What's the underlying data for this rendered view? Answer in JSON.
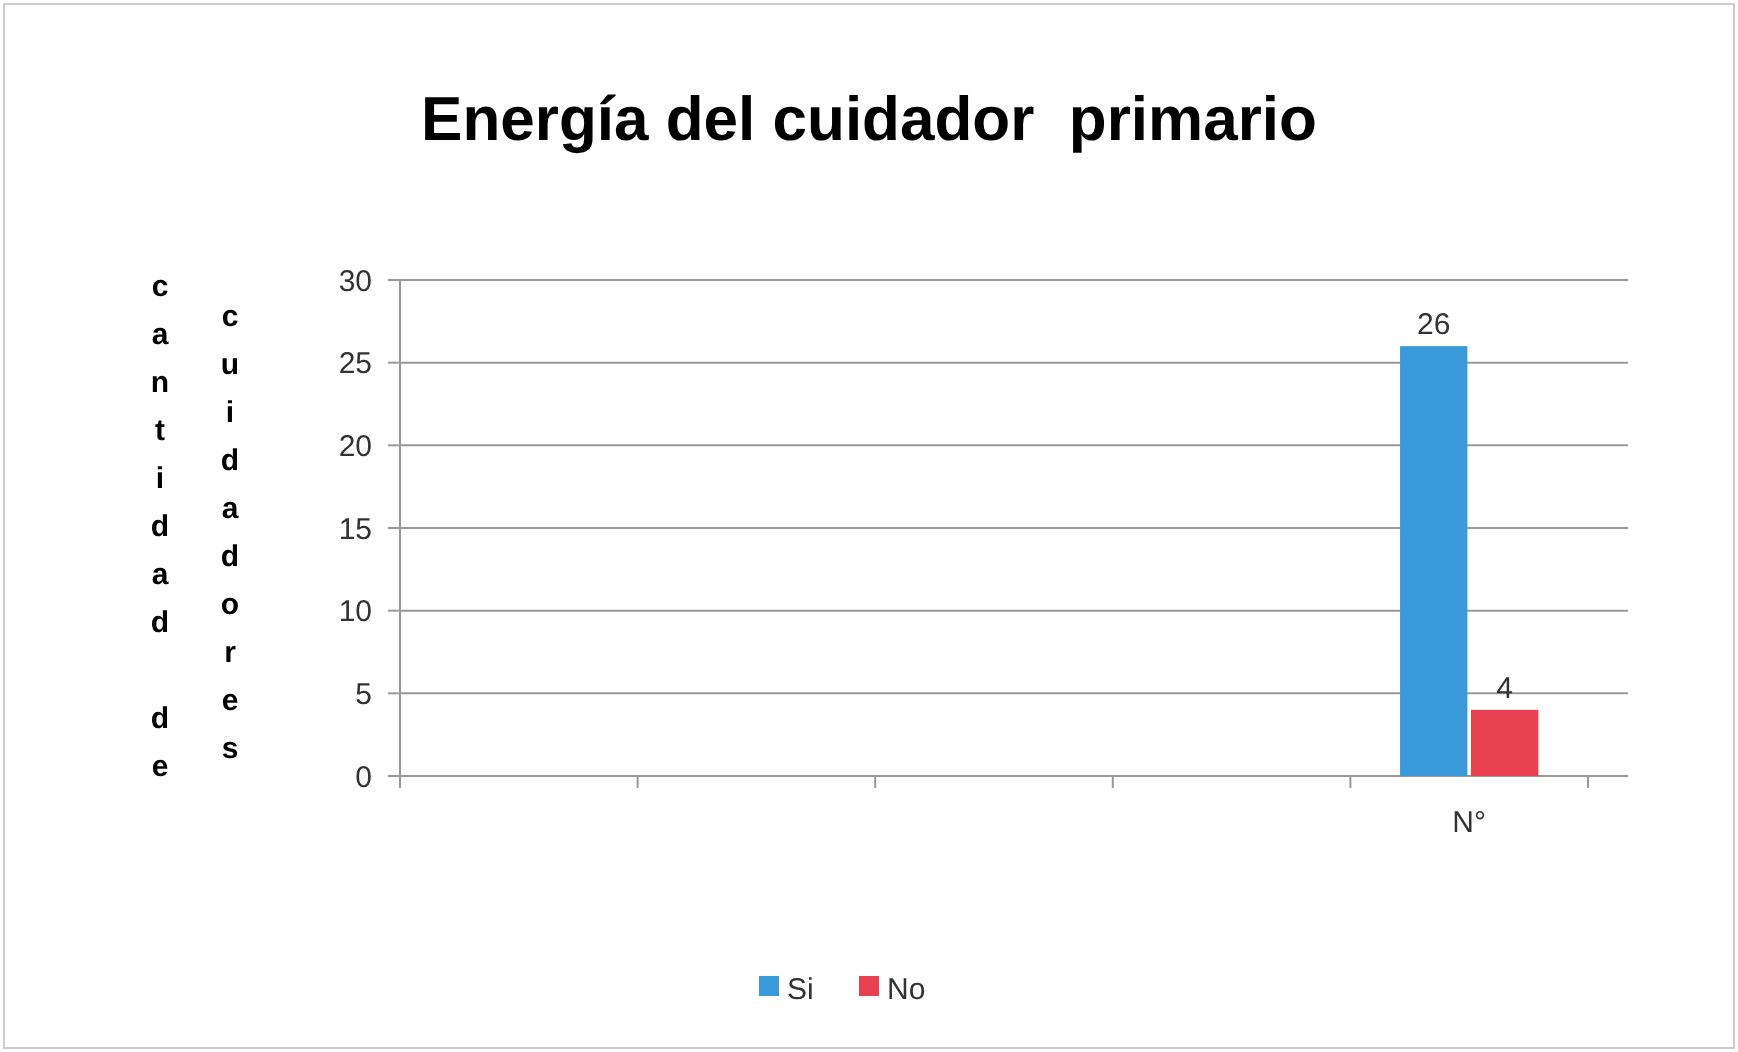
{
  "chart_data": {
    "type": "bar",
    "title": "Energía del cuidador  primario",
    "ylabel": "cantidad de cuidadores",
    "categories": [
      null,
      null,
      null,
      null,
      "N°"
    ],
    "series": [
      {
        "name": "Si",
        "color": "#3a9ad9",
        "values": [
          null,
          null,
          null,
          null,
          26
        ]
      },
      {
        "name": "No",
        "color": "#e8404f",
        "values": [
          null,
          null,
          null,
          null,
          4
        ]
      }
    ],
    "ylim": [
      0,
      30
    ],
    "yticks": [
      0,
      5,
      10,
      15,
      20,
      25,
      30
    ],
    "grid": "y",
    "legend": "bottom",
    "data_labels": true
  }
}
